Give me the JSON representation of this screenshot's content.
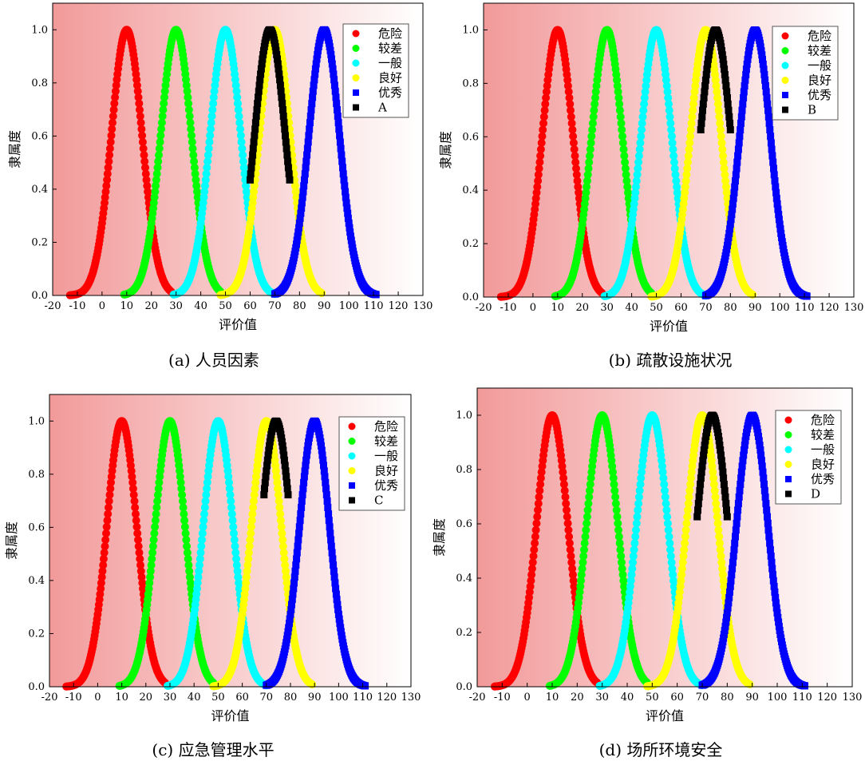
{
  "figure": {
    "panel_backgrounds": {
      "left": "#f29a9a",
      "right": "#ffffff"
    },
    "mf_sigma": 6.2
  },
  "chart_data": [
    {
      "type": "scatter",
      "caption": "(a)  人员因素",
      "xlabel": "评价值",
      "ylabel": "隶属度",
      "xlim": [
        -20,
        130
      ],
      "ylim": [
        0,
        1.1
      ],
      "xticks": [
        "-20",
        "-10",
        "0",
        "10",
        "20",
        "30",
        "40",
        "50",
        "60",
        "70",
        "80",
        "90",
        "100",
        "110",
        "120",
        "130"
      ],
      "yticks": [
        "0.0",
        "0.2",
        "0.4",
        "0.6",
        "0.8",
        "1.0"
      ],
      "series": [
        {
          "name": "危险",
          "marker": "circle",
          "color": "#ff0000",
          "mean": 10,
          "x_range": [
            -13,
            28
          ]
        },
        {
          "name": "较差",
          "marker": "circle",
          "color": "#00ff00",
          "mean": 30,
          "x_range": [
            9,
            48
          ]
        },
        {
          "name": "一般",
          "marker": "circle",
          "color": "#00ffff",
          "mean": 50,
          "x_range": [
            29,
            70
          ]
        },
        {
          "name": "良好",
          "marker": "circle",
          "color": "#ffff00",
          "mean": 70,
          "x_range": [
            48,
            89
          ]
        },
        {
          "name": "优秀",
          "marker": "square",
          "color": "#0000ff",
          "mean": 90,
          "x_range": [
            70,
            111
          ]
        },
        {
          "name": "A",
          "marker": "square",
          "color": "#000000",
          "mean": 68,
          "x_range": [
            60,
            76
          ]
        }
      ]
    },
    {
      "type": "scatter",
      "caption": "(b)  疏散设施状况",
      "xlabel": "评价值",
      "ylabel": "隶属度",
      "xlim": [
        -20,
        130
      ],
      "ylim": [
        0,
        1.1
      ],
      "xticks": [
        "-20",
        "-10",
        "0",
        "10",
        "20",
        "30",
        "40",
        "50",
        "60",
        "70",
        "80",
        "90",
        "100",
        "110",
        "120",
        "130"
      ],
      "yticks": [
        "0.0",
        "0.2",
        "0.4",
        "0.6",
        "0.8",
        "1.0"
      ],
      "series": [
        {
          "name": "危险",
          "marker": "circle",
          "color": "#ff0000",
          "mean": 10,
          "x_range": [
            -13,
            28
          ]
        },
        {
          "name": "较差",
          "marker": "circle",
          "color": "#00ff00",
          "mean": 30,
          "x_range": [
            9,
            48
          ]
        },
        {
          "name": "一般",
          "marker": "circle",
          "color": "#00ffff",
          "mean": 50,
          "x_range": [
            29,
            70
          ]
        },
        {
          "name": "良好",
          "marker": "circle",
          "color": "#ffff00",
          "mean": 70,
          "x_range": [
            48,
            89
          ]
        },
        {
          "name": "优秀",
          "marker": "square",
          "color": "#0000ff",
          "mean": 90,
          "x_range": [
            70,
            111
          ]
        },
        {
          "name": "B",
          "marker": "square",
          "color": "#000000",
          "mean": 74,
          "x_range": [
            68,
            80
          ]
        }
      ]
    },
    {
      "type": "scatter",
      "caption": "(c)  应急管理水平",
      "xlabel": "评价值",
      "ylabel": "隶属度",
      "xlim": [
        -20,
        130
      ],
      "ylim": [
        0,
        1.1
      ],
      "xticks": [
        "-20",
        "-10",
        "0",
        "10",
        "20",
        "30",
        "40",
        "50",
        "60",
        "70",
        "80",
        "90",
        "100",
        "110",
        "120",
        "130"
      ],
      "yticks": [
        "0.0",
        "0.2",
        "0.4",
        "0.6",
        "0.8",
        "1.0"
      ],
      "series": [
        {
          "name": "危险",
          "marker": "circle",
          "color": "#ff0000",
          "mean": 10,
          "x_range": [
            -13,
            28
          ]
        },
        {
          "name": "较差",
          "marker": "circle",
          "color": "#00ff00",
          "mean": 30,
          "x_range": [
            9,
            48
          ]
        },
        {
          "name": "一般",
          "marker": "circle",
          "color": "#00ffff",
          "mean": 50,
          "x_range": [
            29,
            70
          ]
        },
        {
          "name": "良好",
          "marker": "circle",
          "color": "#ffff00",
          "mean": 70,
          "x_range": [
            48,
            89
          ]
        },
        {
          "name": "优秀",
          "marker": "square",
          "color": "#0000ff",
          "mean": 90,
          "x_range": [
            70,
            111
          ]
        },
        {
          "name": "C",
          "marker": "square",
          "color": "#000000",
          "mean": 74,
          "x_range": [
            69,
            79
          ]
        }
      ]
    },
    {
      "type": "scatter",
      "caption": "(d)  场所环境安全",
      "xlabel": "评价值",
      "ylabel": "隶属度",
      "xlim": [
        -20,
        130
      ],
      "ylim": [
        0,
        1.1
      ],
      "xticks": [
        "-20",
        "-10",
        "0",
        "10",
        "20",
        "30",
        "40",
        "50",
        "60",
        "70",
        "80",
        "90",
        "100",
        "110",
        "120",
        "130"
      ],
      "yticks": [
        "0.0",
        "0.2",
        "0.4",
        "0.6",
        "0.8",
        "1.0"
      ],
      "series": [
        {
          "name": "危险",
          "marker": "circle",
          "color": "#ff0000",
          "mean": 10,
          "x_range": [
            -13,
            28
          ]
        },
        {
          "name": "较差",
          "marker": "circle",
          "color": "#00ff00",
          "mean": 30,
          "x_range": [
            9,
            48
          ]
        },
        {
          "name": "一般",
          "marker": "circle",
          "color": "#00ffff",
          "mean": 50,
          "x_range": [
            29,
            70
          ]
        },
        {
          "name": "良好",
          "marker": "circle",
          "color": "#ffff00",
          "mean": 70,
          "x_range": [
            48,
            89
          ]
        },
        {
          "name": "优秀",
          "marker": "square",
          "color": "#0000ff",
          "mean": 90,
          "x_range": [
            70,
            111
          ]
        },
        {
          "name": "D",
          "marker": "square",
          "color": "#000000",
          "mean": 74,
          "x_range": [
            68,
            80
          ]
        }
      ]
    }
  ]
}
